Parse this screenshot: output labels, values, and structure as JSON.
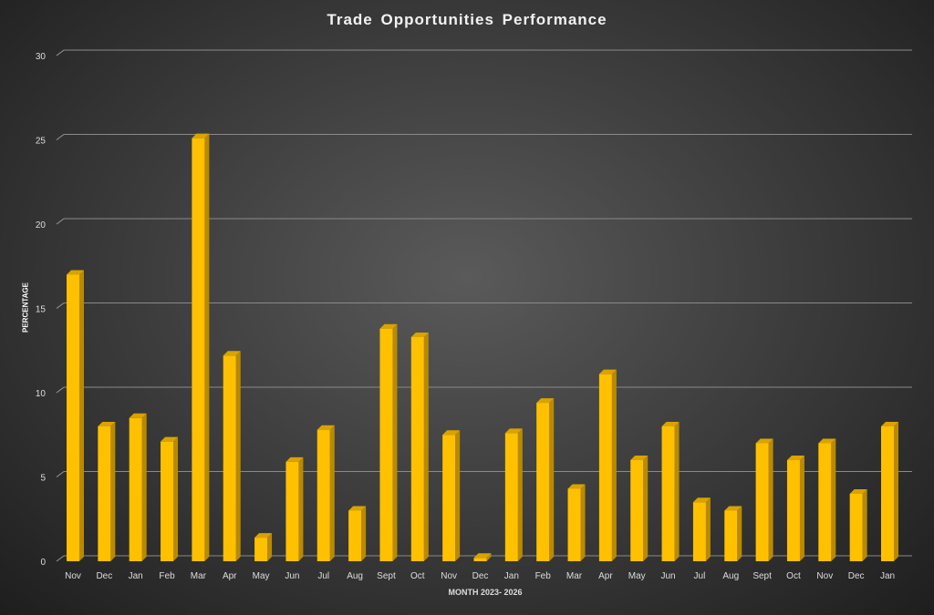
{
  "chart_data": {
    "type": "bar",
    "title": "Trade Opportunities Performance",
    "xlabel": "MONTH 2023- 2026",
    "ylabel": "PERCENTAGE",
    "ylim": [
      0,
      30
    ],
    "yticks": [
      0,
      5,
      10,
      15,
      20,
      25,
      30
    ],
    "grid": true,
    "bar_color": "#FFC000",
    "categories": [
      "Nov",
      "Dec",
      "Jan",
      "Feb",
      "Mar",
      "Apr",
      "May",
      "Jun",
      "Jul",
      "Aug",
      "Sept",
      "Oct",
      "Nov",
      "Dec",
      "Jan",
      "Feb",
      "Mar",
      "Apr",
      "May",
      "Jun",
      "Jul",
      "Aug",
      "Sept",
      "Oct",
      "Nov",
      "Dec",
      "Jan"
    ],
    "values": [
      17,
      8,
      8.5,
      7.1,
      25.1,
      12.2,
      1.4,
      5.9,
      7.8,
      3,
      13.8,
      13.3,
      7.5,
      0.2,
      7.6,
      9.4,
      4.3,
      11.1,
      6,
      8,
      3.5,
      3,
      7,
      6,
      7,
      4,
      8
    ]
  }
}
